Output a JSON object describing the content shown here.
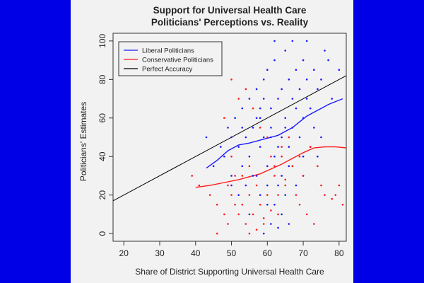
{
  "chart_data": {
    "type": "scatter",
    "title": "Support for Universal Health Care",
    "subtitle": "Politicians' Perceptions vs. Reality",
    "xlabel": "Share of District Supporting Universal Health Care",
    "ylabel": "Politicians' Estimates",
    "xlim": [
      17,
      82
    ],
    "ylim": [
      -4,
      104
    ],
    "xticks": [
      20,
      30,
      40,
      50,
      60,
      70,
      80
    ],
    "yticks": [
      0,
      20,
      40,
      60,
      80,
      100
    ],
    "grid": false,
    "legend_position": "top-left",
    "colors": {
      "liberal": "#1a1aff",
      "conservative": "#ff1a1a",
      "accuracy": "#000000"
    },
    "legend": [
      "Liberal Politicians",
      "Conservative Politicians",
      "Perfect Accuracy"
    ],
    "series": [
      {
        "name": "Liberal Politicians",
        "kind": "points",
        "color": "#1a1aff",
        "x": [
          43,
          45,
          47,
          48,
          49,
          50,
          50,
          51,
          52,
          53,
          53,
          54,
          55,
          55,
          56,
          57,
          57,
          58,
          58,
          59,
          59,
          60,
          60,
          61,
          61,
          62,
          62,
          63,
          63,
          64,
          64,
          65,
          65,
          66,
          66,
          67,
          67,
          68,
          68,
          69,
          69,
          70,
          70,
          71,
          71,
          72,
          73,
          73,
          74,
          75,
          76,
          77,
          78,
          80,
          52,
          54,
          56,
          58,
          60,
          62,
          64,
          66,
          68,
          70,
          72,
          74,
          57,
          59,
          61,
          63,
          65,
          55,
          60,
          65,
          70,
          75,
          50,
          53,
          58,
          62,
          67,
          71,
          61,
          63,
          64,
          66,
          59
        ],
        "y": [
          50,
          35,
          45,
          40,
          55,
          30,
          50,
          60,
          45,
          65,
          35,
          50,
          70,
          40,
          55,
          75,
          30,
          60,
          45,
          80,
          50,
          85,
          35,
          65,
          55,
          90,
          40,
          70,
          25,
          75,
          50,
          95,
          60,
          80,
          45,
          70,
          55,
          85,
          65,
          75,
          50,
          90,
          60,
          80,
          70,
          65,
          85,
          55,
          75,
          80,
          95,
          90,
          70,
          85,
          20,
          25,
          30,
          20,
          25,
          15,
          30,
          35,
          25,
          40,
          45,
          40,
          60,
          70,
          50,
          45,
          55,
          10,
          15,
          20,
          30,
          50,
          25,
          55,
          65,
          100,
          100,
          100,
          5,
          3,
          10,
          5,
          0
        ]
      },
      {
        "name": "Conservative Politicians",
        "kind": "points",
        "color": "#ff1a1a",
        "x": [
          39,
          41,
          44,
          46,
          47,
          48,
          49,
          50,
          50,
          51,
          52,
          53,
          54,
          55,
          55,
          56,
          57,
          58,
          59,
          60,
          61,
          62,
          63,
          64,
          65,
          66,
          67,
          68,
          69,
          70,
          72,
          74,
          76,
          78,
          80,
          48,
          50,
          52,
          54,
          56,
          58,
          60,
          62,
          64,
          46,
          49,
          51,
          53,
          55,
          57,
          59,
          61,
          63,
          65,
          67,
          69,
          71,
          73,
          75,
          79,
          81
        ],
        "y": [
          30,
          25,
          20,
          15,
          85,
          10,
          5,
          40,
          20,
          30,
          10,
          15,
          5,
          35,
          20,
          10,
          25,
          15,
          5,
          20,
          40,
          30,
          10,
          45,
          25,
          50,
          35,
          20,
          40,
          30,
          45,
          35,
          20,
          18,
          25,
          60,
          80,
          70,
          75,
          65,
          55,
          50,
          35,
          40,
          0,
          25,
          15,
          30,
          0,
          2,
          8,
          12,
          20,
          28,
          35,
          15,
          10,
          5,
          25,
          20,
          15
        ]
      },
      {
        "name": "Liberal Politicians",
        "kind": "trend",
        "color": "#1a1aff",
        "x": [
          43,
          46,
          49,
          52,
          55,
          57,
          59,
          61,
          63,
          65,
          67,
          69,
          71,
          73,
          75,
          77,
          79,
          81
        ],
        "y": [
          34,
          38,
          43,
          46,
          47,
          48,
          49,
          50,
          51,
          53,
          55,
          58,
          61,
          63,
          65,
          67,
          68.5,
          70
        ]
      },
      {
        "name": "Conservative Politicians",
        "kind": "trend",
        "color": "#ff1a1a",
        "x": [
          40,
          44,
          48,
          52,
          55,
          58,
          61,
          64,
          67,
          70,
          73,
          76,
          79,
          82
        ],
        "y": [
          24,
          25,
          26.5,
          28,
          29.5,
          31,
          33.5,
          36,
          39,
          42,
          44.5,
          45,
          45,
          44.5
        ]
      },
      {
        "name": "Perfect Accuracy",
        "kind": "line",
        "color": "#000000",
        "x": [
          17,
          82
        ],
        "y": [
          17,
          82
        ]
      }
    ]
  }
}
